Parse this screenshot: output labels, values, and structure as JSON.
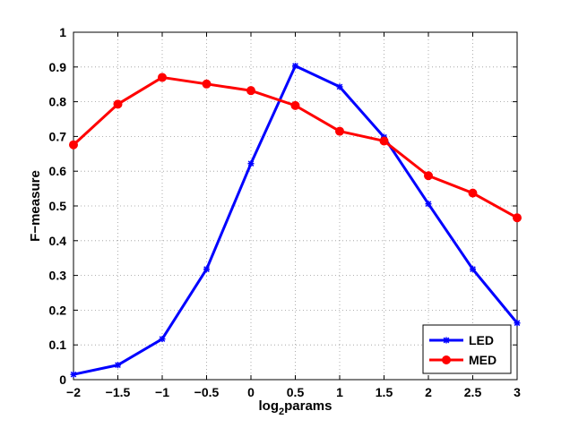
{
  "chart_data": {
    "type": "line",
    "title": "",
    "xlabel_main": "log",
    "xlabel_sub": "2",
    "xlabel_rest": "params",
    "ylabel": "F−measure",
    "xlim": [
      -2,
      3
    ],
    "ylim": [
      0,
      1
    ],
    "grid": true,
    "legend_position": "bottom-right",
    "x_ticks": [
      -2,
      -1.5,
      -1,
      -0.5,
      0,
      0.5,
      1,
      1.5,
      2,
      2.5,
      3
    ],
    "x_tick_labels": [
      "−2",
      "−1.5",
      "−1",
      "−0.5",
      "0",
      "0.5",
      "1",
      "1.5",
      "2",
      "2.5",
      "3"
    ],
    "y_ticks": [
      0,
      0.1,
      0.2,
      0.3,
      0.4,
      0.5,
      0.6,
      0.7,
      0.8,
      0.9,
      1
    ],
    "y_tick_labels": [
      "0",
      "0.1",
      "0.2",
      "0.3",
      "0.4",
      "0.5",
      "0.6",
      "0.7",
      "0.8",
      "0.9",
      "1"
    ],
    "x": [
      -2,
      -1.5,
      -1,
      -0.5,
      0,
      0.5,
      1,
      1.5,
      2,
      2.5,
      3
    ],
    "series": [
      {
        "name": "LED",
        "color": "#0000ff",
        "marker": "star",
        "values": [
          0.015,
          0.042,
          0.117,
          0.318,
          0.622,
          0.903,
          0.843,
          0.698,
          0.506,
          0.318,
          0.163
        ]
      },
      {
        "name": "MED",
        "color": "#ff0000",
        "marker": "circle",
        "values": [
          0.676,
          0.793,
          0.87,
          0.851,
          0.832,
          0.789,
          0.715,
          0.687,
          0.587,
          0.537,
          0.466
        ]
      }
    ]
  }
}
